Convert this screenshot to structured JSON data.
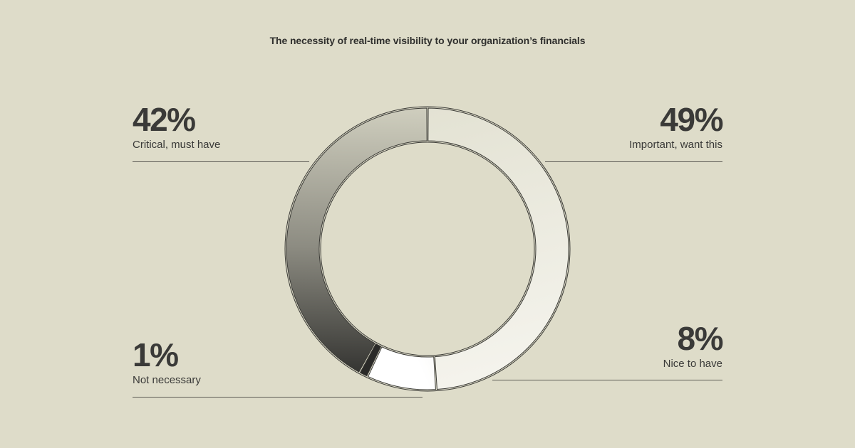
{
  "chart_data": {
    "type": "donut",
    "title": "The necessity of real-time visibility to your organization’s financials",
    "segments": [
      {
        "label": "Important, want this",
        "value": 49,
        "display": "49%",
        "color_start": "#f2f1e8",
        "color_end": "#dcdbcb"
      },
      {
        "label": "Nice to have",
        "value": 8,
        "display": "8%",
        "color_start": "#fbfbf8",
        "color_end": "#ecebe2"
      },
      {
        "label": "Not necessary",
        "value": 1,
        "display": "1%",
        "color_start": "#2a2a28",
        "color_end": "#2a2a28"
      },
      {
        "label": "Critical, must have",
        "value": 42,
        "display": "42%",
        "color_start": "#2e2e2c",
        "color_end": "#c8c7b6"
      }
    ]
  },
  "colors": {
    "background": "#dedcc9",
    "text": "#3a3a38",
    "ring_stroke": "#3a3a36"
  }
}
